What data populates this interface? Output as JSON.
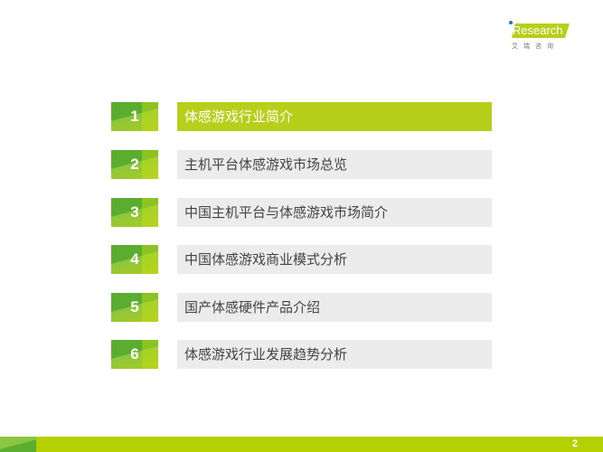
{
  "logo": {
    "brand": "iResearch",
    "brand_cn": "艾瑞咨询"
  },
  "toc": {
    "items": [
      {
        "number": "1",
        "title": "体感游戏行业简介",
        "active": true
      },
      {
        "number": "2",
        "title": "主机平台体感游戏市场总览",
        "active": false
      },
      {
        "number": "3",
        "title": "中国主机平台与体感游戏市场简介",
        "active": false
      },
      {
        "number": "4",
        "title": "中国体感游戏商业模式分析",
        "active": false
      },
      {
        "number": "5",
        "title": "国产体感硬件产品介绍",
        "active": false
      },
      {
        "number": "6",
        "title": "体感游戏行业发展趋势分析",
        "active": false
      }
    ]
  },
  "footer": {
    "page_number": "2"
  },
  "colors": {
    "accent": "#b5cf1a",
    "dark_green": "#5aad2f",
    "inactive_bg": "#ececec"
  }
}
